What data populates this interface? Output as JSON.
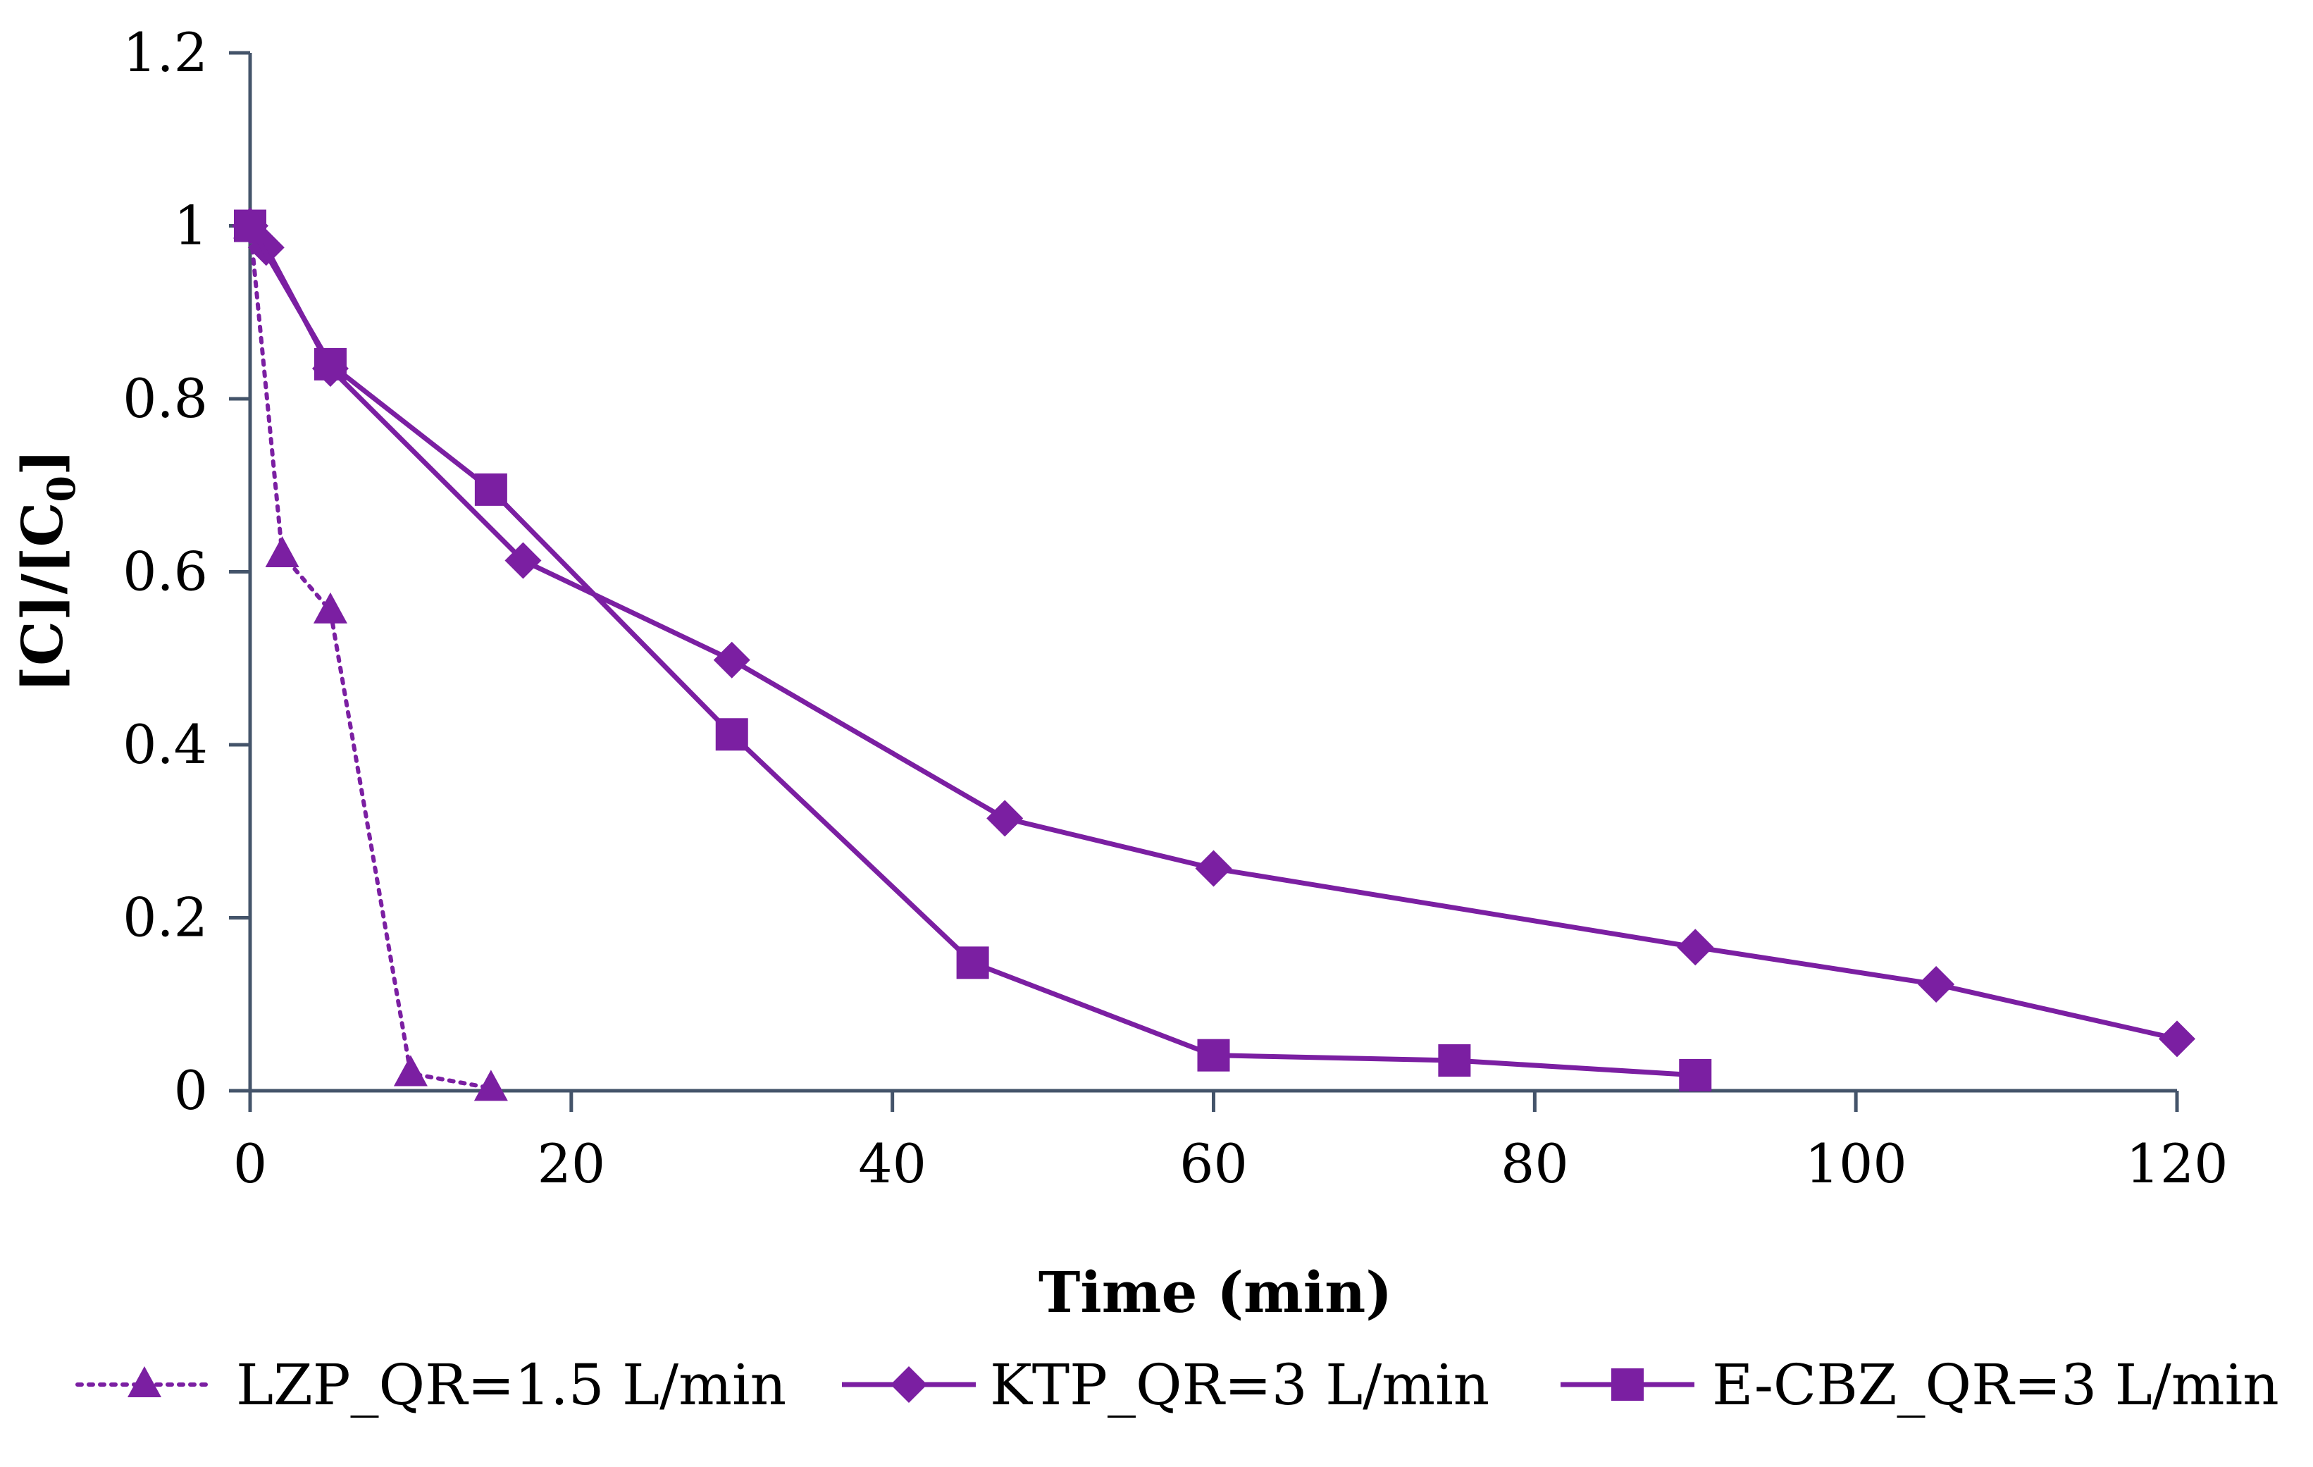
{
  "chart_data": {
    "type": "line",
    "title": "",
    "xlabel": "Time (min)",
    "ylabel_main": "[C]/[C",
    "ylabel_sub": "0",
    "ylabel_end": "]",
    "xlim": [
      0,
      120
    ],
    "ylim": [
      0,
      1.2
    ],
    "xticks": [
      0,
      20,
      40,
      60,
      80,
      100,
      120
    ],
    "yticks": [
      0,
      0.2,
      0.4,
      0.6,
      0.8,
      1,
      1.2
    ],
    "xtick_labels": [
      "0",
      "20",
      "40",
      "60",
      "80",
      "100",
      "120"
    ],
    "ytick_labels": [
      "0",
      "0.2",
      "0.4",
      "0.6",
      "0.8",
      "1",
      "1.2"
    ],
    "grid": false,
    "legend_position": "bottom",
    "series_color": "#7B1FA2",
    "axis_color": "#44546A",
    "series": [
      {
        "name": "LZP_QR=1.5 L/min",
        "marker": "triangle",
        "line": "dotted",
        "x": [
          0,
          2,
          5,
          10,
          15
        ],
        "y": [
          1.0,
          0.62,
          0.555,
          0.02,
          0.003
        ]
      },
      {
        "name": "KTP_QR=3 L/min",
        "marker": "diamond",
        "line": "solid",
        "x": [
          0,
          1,
          5,
          17,
          30,
          47,
          60,
          90,
          105,
          120
        ],
        "y": [
          1.0,
          0.975,
          0.835,
          0.613,
          0.498,
          0.315,
          0.257,
          0.166,
          0.123,
          0.06
        ]
      },
      {
        "name": "E-CBZ_QR=3 L/min",
        "marker": "square",
        "line": "solid",
        "x": [
          0,
          5,
          15,
          30,
          45,
          60,
          75,
          90
        ],
        "y": [
          1.0,
          0.84,
          0.695,
          0.412,
          0.148,
          0.041,
          0.035,
          0.018
        ]
      }
    ]
  }
}
